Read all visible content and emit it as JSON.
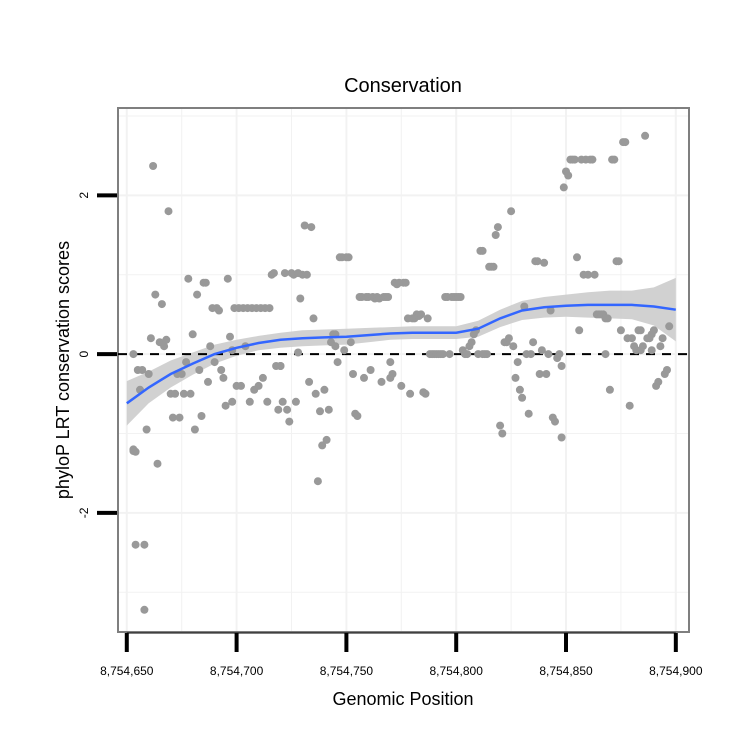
{
  "chart_data": {
    "type": "scatter",
    "title": "Conservation",
    "xlabel": "Genomic Position",
    "ylabel": "phyloP LRT conservation scores",
    "xlim": [
      8754646,
      8754906
    ],
    "ylim": [
      -3.5,
      3.1
    ],
    "x_ticks": [
      8754650,
      8754700,
      8754750,
      8754800,
      8754850,
      8754900
    ],
    "x_tick_labels": [
      "8,754,650",
      "8,754,700",
      "8,754,750",
      "8,754,800",
      "8,754,850",
      "8,754,900"
    ],
    "y_ticks": [
      -2,
      0,
      2
    ],
    "y_tick_labels": [
      "-2",
      "0",
      "2"
    ],
    "reference_line": {
      "y": 0,
      "style": "dashed",
      "color": "#000000"
    },
    "colors": {
      "points": "#999999",
      "smooth": "#3366ff",
      "band": "#cccccc",
      "panel_border": "#7f7f7f",
      "grid": "#f2f2f2"
    },
    "points": [
      [
        8754653,
        0.0
      ],
      [
        8754653,
        -1.2
      ],
      [
        8754654,
        -1.23
      ],
      [
        8754654,
        -2.4
      ],
      [
        8754655,
        -0.2
      ],
      [
        8754656,
        -0.45
      ],
      [
        8754658,
        -2.4
      ],
      [
        8754658,
        -3.22
      ],
      [
        8754659,
        -0.95
      ],
      [
        8754660,
        -0.25
      ],
      [
        8754661,
        0.2
      ],
      [
        8754662,
        2.37
      ],
      [
        8754663,
        0.75
      ],
      [
        8754664,
        -1.38
      ],
      [
        8754665,
        0.15
      ],
      [
        8754666,
        0.63
      ],
      [
        8754667,
        0.1
      ],
      [
        8754669,
        1.8
      ],
      [
        8754670,
        -0.5
      ],
      [
        8754671,
        -0.8
      ],
      [
        8754672,
        -0.5
      ],
      [
        8754673,
        -0.25
      ],
      [
        8754674,
        -0.8
      ],
      [
        8754675,
        -0.25
      ],
      [
        8754676,
        -0.5
      ],
      [
        8754677,
        -0.1
      ],
      [
        8754678,
        0.95
      ],
      [
        8754679,
        -0.5
      ],
      [
        8754680,
        0.25
      ],
      [
        8754681,
        -0.95
      ],
      [
        8754682,
        0.75
      ],
      [
        8754683,
        -0.2
      ],
      [
        8754684,
        -0.78
      ],
      [
        8754685,
        0.9
      ],
      [
        8754686,
        0.9
      ],
      [
        8754687,
        -0.35
      ],
      [
        8754688,
        0.1
      ],
      [
        8754690,
        -0.1
      ],
      [
        8754691,
        0.58
      ],
      [
        8754692,
        0.55
      ],
      [
        8754693,
        -0.2
      ],
      [
        8754694,
        -0.3
      ],
      [
        8754695,
        -0.65
      ],
      [
        8754696,
        0.95
      ],
      [
        8754697,
        0.22
      ],
      [
        8754698,
        -0.6
      ],
      [
        8754698,
        0.05
      ],
      [
        8754699,
        0.58
      ],
      [
        8754700,
        -0.4
      ],
      [
        8754701,
        0.58
      ],
      [
        8754702,
        -0.4
      ],
      [
        8754703,
        0.58
      ],
      [
        8754704,
        0.1
      ],
      [
        8754705,
        0.58
      ],
      [
        8754706,
        -0.6
      ],
      [
        8754707,
        0.58
      ],
      [
        8754708,
        -0.45
      ],
      [
        8754709,
        0.58
      ],
      [
        8754710,
        -0.4
      ],
      [
        8754711,
        0.58
      ],
      [
        8754712,
        -0.3
      ],
      [
        8754713,
        0.58
      ],
      [
        8754714,
        -0.6
      ],
      [
        8754715,
        0.58
      ],
      [
        8754716,
        1.0
      ],
      [
        8754717,
        1.02
      ],
      [
        8754718,
        -0.15
      ],
      [
        8754719,
        -0.7
      ],
      [
        8754720,
        -0.15
      ],
      [
        8754721,
        -0.6
      ],
      [
        8754722,
        1.02
      ],
      [
        8754723,
        -0.7
      ],
      [
        8754724,
        -0.85
      ],
      [
        8754725,
        1.02
      ],
      [
        8754726,
        1.0
      ],
      [
        8754727,
        -0.6
      ],
      [
        8754728,
        0.02
      ],
      [
        8754729,
        0.7
      ],
      [
        8754730,
        1.0
      ],
      [
        8754731,
        1.62
      ],
      [
        8754732,
        1.0
      ],
      [
        8754733,
        -0.35
      ],
      [
        8754734,
        1.6
      ],
      [
        8754735,
        0.45
      ],
      [
        8754736,
        -0.5
      ],
      [
        8754737,
        -1.6
      ],
      [
        8754738,
        -0.72
      ],
      [
        8754739,
        -1.15
      ],
      [
        8754740,
        -0.45
      ],
      [
        8754741,
        -1.08
      ],
      [
        8754742,
        -0.7
      ],
      [
        8754743,
        0.15
      ],
      [
        8754744,
        0.25
      ],
      [
        8754745,
        0.1
      ],
      [
        8754746,
        -0.1
      ],
      [
        8754747,
        1.22
      ],
      [
        8754748,
        1.22
      ],
      [
        8754749,
        0.05
      ],
      [
        8754750,
        1.22
      ],
      [
        8754751,
        1.22
      ],
      [
        8754752,
        0.15
      ],
      [
        8754753,
        -0.25
      ],
      [
        8754754,
        -0.75
      ],
      [
        8754755,
        -0.78
      ],
      [
        8754756,
        0.72
      ],
      [
        8754757,
        0.72
      ],
      [
        8754758,
        -0.3
      ],
      [
        8754759,
        0.72
      ],
      [
        8754760,
        0.72
      ],
      [
        8754761,
        -0.2
      ],
      [
        8754762,
        0.72
      ],
      [
        8754763,
        0.7
      ],
      [
        8754764,
        0.72
      ],
      [
        8754765,
        0.7
      ],
      [
        8754766,
        -0.35
      ],
      [
        8754767,
        0.72
      ],
      [
        8754768,
        0.72
      ],
      [
        8754769,
        0.72
      ],
      [
        8754770,
        -0.1
      ],
      [
        8754771,
        -0.25
      ],
      [
        8754772,
        0.9
      ],
      [
        8754773,
        0.88
      ],
      [
        8754774,
        0.9
      ],
      [
        8754775,
        -0.4
      ],
      [
        8754776,
        0.9
      ],
      [
        8754777,
        0.9
      ],
      [
        8754778,
        0.45
      ],
      [
        8754779,
        -0.5
      ],
      [
        8754780,
        0.45
      ],
      [
        8754781,
        0.45
      ],
      [
        8754782,
        0.5
      ],
      [
        8754783,
        0.48
      ],
      [
        8754784,
        0.5
      ],
      [
        8754785,
        -0.48
      ],
      [
        8754786,
        -0.5
      ],
      [
        8754787,
        0.45
      ],
      [
        8754788,
        0.0
      ],
      [
        8754789,
        0.0
      ],
      [
        8754790,
        0.0
      ],
      [
        8754791,
        0.0
      ],
      [
        8754792,
        0.0
      ],
      [
        8754793,
        0.0
      ],
      [
        8754794,
        0.0
      ],
      [
        8754795,
        0.72
      ],
      [
        8754796,
        0.72
      ],
      [
        8754797,
        0.0
      ],
      [
        8754798,
        0.72
      ],
      [
        8754799,
        0.72
      ],
      [
        8754800,
        0.72
      ],
      [
        8754801,
        0.72
      ],
      [
        8754802,
        0.72
      ],
      [
        8754803,
        0.05
      ],
      [
        8754804,
        0.0
      ],
      [
        8754805,
        0.0
      ],
      [
        8754806,
        0.1
      ],
      [
        8754807,
        0.15
      ],
      [
        8754808,
        0.25
      ],
      [
        8754809,
        0.3
      ],
      [
        8754810,
        0.0
      ],
      [
        8754811,
        1.3
      ],
      [
        8754812,
        1.3
      ],
      [
        8754813,
        0.0
      ],
      [
        8754814,
        0.0
      ],
      [
        8754815,
        1.1
      ],
      [
        8754816,
        1.1
      ],
      [
        8754817,
        1.1
      ],
      [
        8754818,
        1.5
      ],
      [
        8754819,
        1.6
      ],
      [
        8754820,
        -0.9
      ],
      [
        8754821,
        -1.0
      ],
      [
        8754822,
        0.15
      ],
      [
        8754823,
        0.15
      ],
      [
        8754824,
        0.2
      ],
      [
        8754825,
        1.8
      ],
      [
        8754826,
        0.1
      ],
      [
        8754827,
        -0.3
      ],
      [
        8754828,
        -0.1
      ],
      [
        8754829,
        -0.45
      ],
      [
        8754830,
        -0.55
      ],
      [
        8754831,
        0.6
      ],
      [
        8754832,
        0.0
      ],
      [
        8754833,
        -0.75
      ],
      [
        8754834,
        0.0
      ],
      [
        8754835,
        0.15
      ],
      [
        8754836,
        1.17
      ],
      [
        8754837,
        1.17
      ],
      [
        8754838,
        -0.25
      ],
      [
        8754839,
        0.05
      ],
      [
        8754840,
        1.15
      ],
      [
        8754841,
        -0.25
      ],
      [
        8754842,
        0.0
      ],
      [
        8754843,
        0.55
      ],
      [
        8754844,
        -0.8
      ],
      [
        8754845,
        -0.85
      ],
      [
        8754846,
        -0.05
      ],
      [
        8754847,
        0.0
      ],
      [
        8754848,
        -1.05
      ],
      [
        8754849,
        2.1
      ],
      [
        8754850,
        2.3
      ],
      [
        8754851,
        2.25
      ],
      [
        8754852,
        2.45
      ],
      [
        8754853,
        2.45
      ],
      [
        8754854,
        2.45
      ],
      [
        8754855,
        1.22
      ],
      [
        8754856,
        0.3
      ],
      [
        8754857,
        2.45
      ],
      [
        8754858,
        1.0
      ],
      [
        8754859,
        2.45
      ],
      [
        8754860,
        1.0
      ],
      [
        8754861,
        2.45
      ],
      [
        8754862,
        2.45
      ],
      [
        8754863,
        1.0
      ],
      [
        8754864,
        0.5
      ],
      [
        8754865,
        0.5
      ],
      [
        8754866,
        0.5
      ],
      [
        8754867,
        0.5
      ],
      [
        8754868,
        0.45
      ],
      [
        8754869,
        0.45
      ],
      [
        8754870,
        -0.45
      ],
      [
        8754871,
        2.45
      ],
      [
        8754872,
        2.45
      ],
      [
        8754873,
        1.17
      ],
      [
        8754874,
        1.17
      ],
      [
        8754875,
        0.3
      ],
      [
        8754876,
        2.67
      ],
      [
        8754877,
        2.67
      ],
      [
        8754878,
        0.2
      ],
      [
        8754879,
        -0.65
      ],
      [
        8754880,
        0.2
      ],
      [
        8754881,
        0.1
      ],
      [
        8754882,
        0.05
      ],
      [
        8754883,
        0.3
      ],
      [
        8754884,
        0.3
      ],
      [
        8754885,
        0.1
      ],
      [
        8754886,
        2.75
      ],
      [
        8754887,
        0.2
      ],
      [
        8754888,
        0.2
      ],
      [
        8754889,
        0.25
      ],
      [
        8754890,
        0.3
      ],
      [
        8754891,
        -0.4
      ],
      [
        8754892,
        -0.35
      ],
      [
        8754893,
        0.1
      ],
      [
        8754894,
        0.2
      ],
      [
        8754895,
        -0.25
      ],
      [
        8754896,
        -0.2
      ],
      [
        8754897,
        0.35
      ],
      [
        8754653,
        -1.22
      ],
      [
        8754657,
        -0.2
      ],
      [
        8754668,
        0.18
      ],
      [
        8754689,
        0.58
      ],
      [
        8754720,
        -0.15
      ],
      [
        8754728,
        1.02
      ],
      [
        8754745,
        0.25
      ],
      [
        8754770,
        -0.3
      ],
      [
        8754812,
        0.0
      ],
      [
        8754848,
        -0.15
      ],
      [
        8754868,
        0.0
      ],
      [
        8754884,
        0.05
      ],
      [
        8754889,
        0.05
      ]
    ],
    "smooth": {
      "x": [
        8754650,
        8754660,
        8754670,
        8754680,
        8754690,
        8754700,
        8754710,
        8754720,
        8754730,
        8754740,
        8754750,
        8754760,
        8754770,
        8754780,
        8754790,
        8754800,
        8754810,
        8754820,
        8754830,
        8754840,
        8754850,
        8754860,
        8754870,
        8754880,
        8754890,
        8754900
      ],
      "y": [
        -0.62,
        -0.42,
        -0.25,
        -0.12,
        0.0,
        0.08,
        0.14,
        0.18,
        0.2,
        0.21,
        0.22,
        0.24,
        0.26,
        0.27,
        0.27,
        0.27,
        0.32,
        0.45,
        0.55,
        0.59,
        0.61,
        0.62,
        0.62,
        0.62,
        0.6,
        0.56
      ],
      "lower": [
        -0.9,
        -0.62,
        -0.42,
        -0.26,
        -0.12,
        -0.02,
        0.05,
        0.08,
        0.1,
        0.11,
        0.12,
        0.15,
        0.18,
        0.19,
        0.19,
        0.19,
        0.22,
        0.34,
        0.43,
        0.46,
        0.47,
        0.46,
        0.45,
        0.44,
        0.36,
        0.16
      ],
      "upper": [
        -0.34,
        -0.22,
        -0.08,
        0.02,
        0.12,
        0.18,
        0.23,
        0.27,
        0.3,
        0.31,
        0.32,
        0.33,
        0.34,
        0.35,
        0.35,
        0.35,
        0.42,
        0.56,
        0.67,
        0.72,
        0.75,
        0.78,
        0.8,
        0.8,
        0.84,
        0.96
      ]
    }
  }
}
